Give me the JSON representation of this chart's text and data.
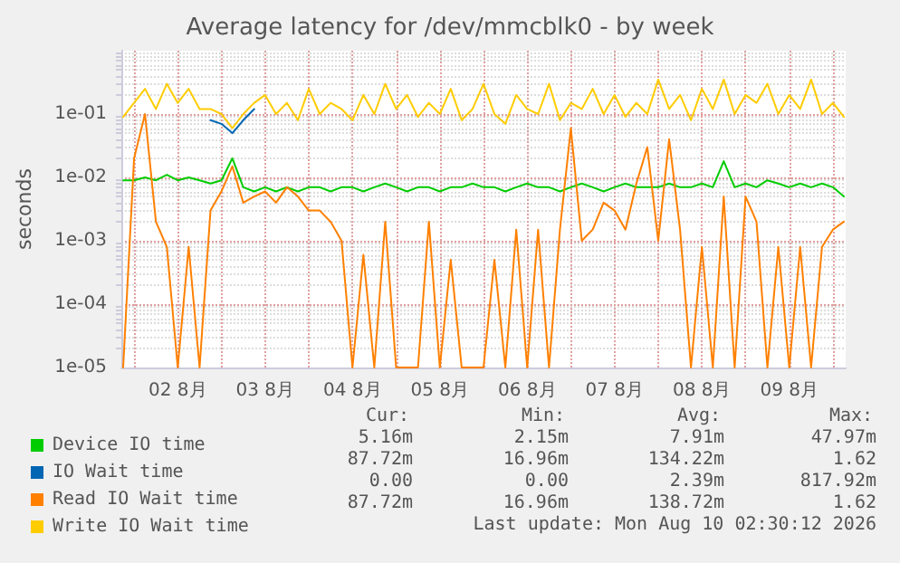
{
  "chart_data": {
    "type": "line",
    "title": "Average latency for /dev/mmcblk0 - by week",
    "ylabel": "seconds",
    "log": "y",
    "grid": true,
    "legend": "bottom",
    "marker": "none",
    "line_style": "solid",
    "ylim": [
      1e-05,
      1
    ],
    "yticks": [
      {
        "value": 1e-05,
        "label": "1e-05"
      },
      {
        "value": 0.0001,
        "label": "1e-04"
      },
      {
        "value": 0.001,
        "label": "1e-03"
      },
      {
        "value": 0.01,
        "label": "1e-02"
      },
      {
        "value": 0.1,
        "label": "1e-01"
      }
    ],
    "xlim": [
      "2026-08-01T20:30",
      "2026-08-10T03:30"
    ],
    "xticks": [
      {
        "value": "2026-08-02T00:00",
        "label": null
      },
      {
        "value": "2026-08-02T12:00",
        "label": "02 8月"
      },
      {
        "value": "2026-08-03T00:00",
        "label": null
      },
      {
        "value": "2026-08-03T12:00",
        "label": "03 8月"
      },
      {
        "value": "2026-08-04T00:00",
        "label": null
      },
      {
        "value": "2026-08-04T12:00",
        "label": "04 8月"
      },
      {
        "value": "2026-08-05T00:00",
        "label": null
      },
      {
        "value": "2026-08-05T12:00",
        "label": "05 8月"
      },
      {
        "value": "2026-08-06T00:00",
        "label": null
      },
      {
        "value": "2026-08-06T12:00",
        "label": "06 8月"
      },
      {
        "value": "2026-08-07T00:00",
        "label": null
      },
      {
        "value": "2026-08-07T12:00",
        "label": "07 8月"
      },
      {
        "value": "2026-08-08T00:00",
        "label": null
      },
      {
        "value": "2026-08-08T12:00",
        "label": "08 8月"
      },
      {
        "value": "2026-08-09T00:00",
        "label": null
      },
      {
        "value": "2026-08-09T12:00",
        "label": "09 8月"
      },
      {
        "value": "2026-08-10T00:00",
        "label": null
      }
    ],
    "x": [
      "2026-08-01T21:00",
      "2026-08-02T00:00",
      "2026-08-02T03:00",
      "2026-08-02T06:00",
      "2026-08-02T09:00",
      "2026-08-02T12:00",
      "2026-08-02T15:00",
      "2026-08-02T18:00",
      "2026-08-02T21:00",
      "2026-08-03T00:00",
      "2026-08-03T03:00",
      "2026-08-03T06:00",
      "2026-08-03T09:00",
      "2026-08-03T12:00",
      "2026-08-03T15:00",
      "2026-08-03T18:00",
      "2026-08-03T21:00",
      "2026-08-04T00:00",
      "2026-08-04T03:00",
      "2026-08-04T06:00",
      "2026-08-04T09:00",
      "2026-08-04T12:00",
      "2026-08-04T15:00",
      "2026-08-04T18:00",
      "2026-08-04T21:00",
      "2026-08-05T00:00",
      "2026-08-05T03:00",
      "2026-08-05T06:00",
      "2026-08-05T09:00",
      "2026-08-05T12:00",
      "2026-08-05T15:00",
      "2026-08-05T18:00",
      "2026-08-05T21:00",
      "2026-08-06T00:00",
      "2026-08-06T03:00",
      "2026-08-06T06:00",
      "2026-08-06T09:00",
      "2026-08-06T12:00",
      "2026-08-06T15:00",
      "2026-08-06T18:00",
      "2026-08-06T21:00",
      "2026-08-07T00:00",
      "2026-08-07T03:00",
      "2026-08-07T06:00",
      "2026-08-07T09:00",
      "2026-08-07T12:00",
      "2026-08-07T15:00",
      "2026-08-07T18:00",
      "2026-08-07T21:00",
      "2026-08-08T00:00",
      "2026-08-08T03:00",
      "2026-08-08T06:00",
      "2026-08-08T09:00",
      "2026-08-08T12:00",
      "2026-08-08T15:00",
      "2026-08-08T18:00",
      "2026-08-08T21:00",
      "2026-08-09T00:00",
      "2026-08-09T03:00",
      "2026-08-09T06:00",
      "2026-08-09T09:00",
      "2026-08-09T12:00",
      "2026-08-09T15:00",
      "2026-08-09T18:00",
      "2026-08-09T21:00",
      "2026-08-10T00:00",
      "2026-08-10T03:00"
    ],
    "series": [
      {
        "name": "Device IO time",
        "color": "#00cc00",
        "values": [
          0.009,
          0.009,
          0.01,
          0.009,
          0.011,
          0.009,
          0.01,
          0.009,
          0.008,
          0.009,
          0.02,
          0.007,
          0.006,
          0.007,
          0.006,
          0.007,
          0.006,
          0.007,
          0.007,
          0.006,
          0.007,
          0.007,
          0.006,
          0.007,
          0.008,
          0.007,
          0.006,
          0.007,
          0.007,
          0.006,
          0.007,
          0.007,
          0.008,
          0.007,
          0.007,
          0.006,
          0.007,
          0.008,
          0.007,
          0.007,
          0.006,
          0.007,
          0.008,
          0.007,
          0.006,
          0.007,
          0.008,
          0.007,
          0.007,
          0.007,
          0.008,
          0.007,
          0.007,
          0.008,
          0.007,
          0.018,
          0.007,
          0.008,
          0.007,
          0.009,
          0.008,
          0.007,
          0.008,
          0.007,
          0.008,
          0.007,
          0.005
        ]
      },
      {
        "name": "IO Wait time",
        "color": "#0066b3",
        "values": [
          null,
          null,
          null,
          null,
          null,
          null,
          null,
          null,
          0.08,
          0.07,
          0.05,
          0.08,
          0.12,
          null,
          null,
          null,
          null,
          null,
          null,
          null,
          null,
          null,
          null,
          null,
          null,
          null,
          null,
          null,
          null,
          null,
          null,
          null,
          null,
          null,
          null,
          null,
          null,
          null,
          null,
          null,
          null,
          null,
          null,
          null,
          null,
          null,
          null,
          null,
          null,
          null,
          null,
          null,
          null,
          null,
          null,
          null,
          null,
          null,
          null,
          null,
          null,
          null,
          null,
          null,
          null,
          null,
          null
        ]
      },
      {
        "name": "Read IO Wait time",
        "color": "#ff8000",
        "values": [
          1e-05,
          0.02,
          0.1,
          0.002,
          0.0008,
          1e-05,
          0.0008,
          1e-05,
          0.003,
          0.006,
          0.015,
          0.004,
          0.005,
          0.006,
          0.004,
          0.007,
          0.005,
          0.003,
          0.003,
          0.002,
          0.001,
          1e-05,
          0.0006,
          1e-05,
          0.002,
          1e-05,
          1e-05,
          1e-05,
          0.002,
          1e-05,
          0.0005,
          1e-05,
          1e-05,
          1e-05,
          0.0005,
          1e-05,
          0.0015,
          1e-05,
          0.0015,
          1e-05,
          0.0015,
          0.06,
          0.001,
          0.0015,
          0.004,
          0.003,
          0.0015,
          0.008,
          0.03,
          0.001,
          0.04,
          0.0015,
          1e-05,
          0.0008,
          1e-05,
          0.005,
          1e-05,
          0.005,
          0.002,
          1e-05,
          0.0008,
          1e-05,
          0.0008,
          1e-05,
          0.0008,
          0.0015,
          0.002
        ]
      },
      {
        "name": "Write IO Wait time",
        "color": "#ffcc00",
        "values": [
          0.09,
          0.15,
          0.25,
          0.12,
          0.3,
          0.15,
          0.25,
          0.12,
          0.12,
          0.1,
          0.06,
          0.1,
          0.15,
          0.2,
          0.1,
          0.15,
          0.08,
          0.25,
          0.1,
          0.15,
          0.12,
          0.08,
          0.2,
          0.1,
          0.3,
          0.12,
          0.2,
          0.09,
          0.15,
          0.1,
          0.25,
          0.08,
          0.12,
          0.3,
          0.1,
          0.07,
          0.2,
          0.12,
          0.1,
          0.3,
          0.08,
          0.15,
          0.12,
          0.25,
          0.1,
          0.2,
          0.09,
          0.15,
          0.1,
          0.35,
          0.12,
          0.2,
          0.08,
          0.25,
          0.12,
          0.35,
          0.1,
          0.2,
          0.15,
          0.3,
          0.1,
          0.2,
          0.12,
          0.35,
          0.1,
          0.15,
          0.09
        ]
      }
    ],
    "annotations": [
      "Cur:",
      "Min:",
      "Avg:",
      "Max:",
      "5.16m",
      "2.15m",
      "7.91m",
      "47.97m",
      "87.72m",
      "16.96m",
      "134.22m",
      "1.62",
      "0.00",
      "0.00",
      "2.39m",
      "817.92m",
      "87.72m",
      "16.96m",
      "138.72m",
      "1.62",
      "Last update: Mon Aug 10 02:30:12 2026"
    ]
  }
}
